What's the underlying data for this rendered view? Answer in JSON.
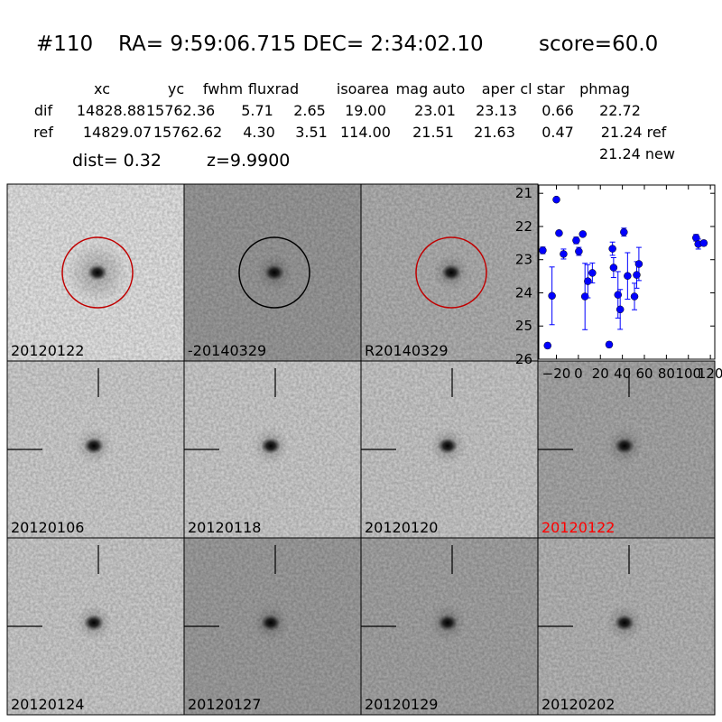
{
  "header": {
    "id": "#110",
    "coords": "RA= 9:59:06.715 DEC= 2:34:02.10",
    "score": "score=60.0"
  },
  "table": {
    "columns": [
      "xc",
      "yc",
      "fwhm",
      "fluxrad",
      "isoarea",
      "mag auto",
      "aper",
      "cl star",
      "phmag"
    ],
    "rows": [
      [
        "dif",
        "14828.88",
        "15762.36",
        "5.71",
        "2.65",
        "19.00",
        "23.01",
        "23.13",
        "0.66",
        "22.72"
      ],
      [
        "ref",
        "14829.07",
        "15762.62",
        "4.30",
        "3.51",
        "114.00",
        "21.51",
        "21.63",
        "0.47",
        "21.24 ref"
      ]
    ],
    "extra": "21.24 new"
  },
  "dist": "dist=  0.32",
  "z": "z=9.9900",
  "panels": [
    {
      "label": "20120122",
      "marker": "circle",
      "marker_color": "#c00000",
      "label_color": "#000000"
    },
    {
      "label": "-20140329",
      "marker": "circle",
      "marker_color": "#000000",
      "label_color": "#000000"
    },
    {
      "label": "R20140329",
      "marker": "circle",
      "marker_color": "#c00000",
      "label_color": "#000000"
    },
    {
      "label": "20120106",
      "marker": "crosshair",
      "marker_color": "#000000",
      "label_color": "#000000"
    },
    {
      "label": "20120118",
      "marker": "crosshair",
      "marker_color": "#000000",
      "label_color": "#000000"
    },
    {
      "label": "20120120",
      "marker": "crosshair",
      "marker_color": "#000000",
      "label_color": "#000000"
    },
    {
      "label": "20120122",
      "marker": "crosshair",
      "marker_color": "#000000",
      "label_color": "#ff0000"
    },
    {
      "label": "20120124",
      "marker": "crosshair",
      "marker_color": "#000000",
      "label_color": "#000000"
    },
    {
      "label": "20120127",
      "marker": "crosshair",
      "marker_color": "#000000",
      "label_color": "#000000"
    },
    {
      "label": "20120129",
      "marker": "crosshair",
      "marker_color": "#000000",
      "label_color": "#000000"
    },
    {
      "label": "20120202",
      "marker": "crosshair",
      "marker_color": "#000000",
      "label_color": "#000000"
    }
  ],
  "chart_data": {
    "type": "scatter",
    "x": [
      -32.4,
      -28,
      -24,
      -20,
      -17.6,
      -13.5,
      -2,
      0.4,
      4,
      6,
      8.6,
      12.7,
      28,
      31,
      32,
      36,
      38,
      41.4,
      44.7,
      51,
      53,
      55,
      107,
      109,
      114
    ],
    "values": [
      22.72,
      25.59,
      24.09,
      21.19,
      22.2,
      22.83,
      22.42,
      22.75,
      22.23,
      24.11,
      23.65,
      23.4,
      25.56,
      22.67,
      23.24,
      24.06,
      24.5,
      22.17,
      23.49,
      24.11,
      23.46,
      23.13,
      22.34,
      22.53,
      22.5
    ],
    "errors": [
      0.1,
      0.08,
      0.87,
      0.05,
      0.06,
      0.15,
      0.1,
      0.12,
      0.06,
      1.0,
      0.5,
      0.3,
      0.08,
      0.2,
      0.3,
      0.7,
      0.6,
      0.12,
      0.7,
      0.4,
      0.4,
      0.5,
      0.1,
      0.15,
      0.08
    ],
    "color": "#0000ff",
    "xlim": [
      -36,
      124
    ],
    "ylim": [
      20.75,
      26
    ],
    "y_inverted": true,
    "xticks": [
      {
        "value": -20,
        "label": "−20"
      },
      0,
      20,
      40,
      60,
      80,
      100,
      120
    ],
    "yticks": [
      21,
      22,
      23,
      24,
      25,
      26
    ]
  }
}
